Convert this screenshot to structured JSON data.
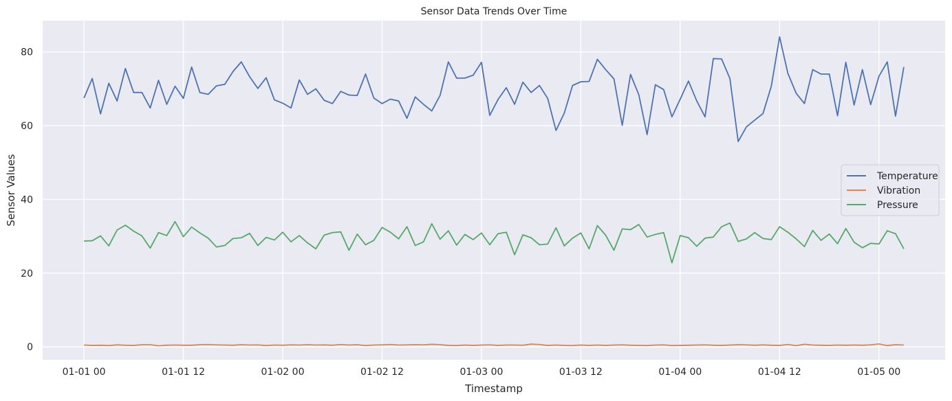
{
  "chart_data": {
    "type": "line",
    "title": "Sensor Data Trends Over Time",
    "xlabel": "Timestamp",
    "ylabel": "Sensor Values",
    "x_start": "2023-01-01 00:00",
    "x_step_hours": 1,
    "xlim_hours": [
      -4.99,
      103.99
    ],
    "ylim": [
      -3.5,
      88.5
    ],
    "x_ticks": [
      {
        "hours": 0,
        "label": "01-01 00"
      },
      {
        "hours": 12,
        "label": "01-01 12"
      },
      {
        "hours": 24,
        "label": "01-02 00"
      },
      {
        "hours": 36,
        "label": "01-02 12"
      },
      {
        "hours": 48,
        "label": "01-03 00"
      },
      {
        "hours": 60,
        "label": "01-03 12"
      },
      {
        "hours": 72,
        "label": "01-04 00"
      },
      {
        "hours": 84,
        "label": "01-04 12"
      },
      {
        "hours": 96,
        "label": "01-05 00"
      }
    ],
    "y_ticks": [
      0,
      20,
      40,
      60,
      80
    ],
    "grid": true,
    "legend_position": "center-right",
    "background": "#eaeaf2",
    "series": [
      {
        "name": "Temperature",
        "color": "#4c72b0",
        "values": [
          67.5,
          72.8,
          63.2,
          71.5,
          66.7,
          75.5,
          69.0,
          69.0,
          64.8,
          72.3,
          65.8,
          70.7,
          67.4,
          75.9,
          69.0,
          68.5,
          70.8,
          71.2,
          74.7,
          77.3,
          73.3,
          70.1,
          73.0,
          67.0,
          66.1,
          64.8,
          72.4,
          68.5,
          70.0,
          66.9,
          66.0,
          69.3,
          68.3,
          68.2,
          74.0,
          67.5,
          66.0,
          67.2,
          66.7,
          62.0,
          67.8,
          65.8,
          64.0,
          68.2,
          77.3,
          72.9,
          72.9,
          73.7,
          77.2,
          62.8,
          67.1,
          70.3,
          65.8,
          71.8,
          69.0,
          70.9,
          67.4,
          58.7,
          63.4,
          70.9,
          71.9,
          72.0,
          78.0,
          75.2,
          72.7,
          60.1,
          73.9,
          68.4,
          57.6,
          71.1,
          69.8,
          62.4,
          67.2,
          72.1,
          66.7,
          62.4,
          78.2,
          78.1,
          72.8,
          55.7,
          59.7,
          61.5,
          63.3,
          70.7,
          84.1,
          74.2,
          68.8,
          66.0,
          75.2,
          74.0,
          74.0,
          62.7,
          77.2,
          65.6,
          75.2,
          65.7,
          73.4,
          77.3,
          62.6,
          75.9
        ]
      },
      {
        "name": "Vibration",
        "color": "#dd8452",
        "values": [
          0.5,
          0.4,
          0.45,
          0.35,
          0.55,
          0.45,
          0.4,
          0.6,
          0.6,
          0.3,
          0.45,
          0.5,
          0.45,
          0.45,
          0.6,
          0.65,
          0.55,
          0.5,
          0.45,
          0.6,
          0.5,
          0.55,
          0.35,
          0.5,
          0.45,
          0.55,
          0.5,
          0.6,
          0.5,
          0.55,
          0.45,
          0.65,
          0.5,
          0.6,
          0.35,
          0.5,
          0.55,
          0.65,
          0.5,
          0.55,
          0.6,
          0.55,
          0.7,
          0.6,
          0.4,
          0.35,
          0.5,
          0.4,
          0.5,
          0.55,
          0.4,
          0.5,
          0.5,
          0.45,
          0.75,
          0.65,
          0.4,
          0.5,
          0.4,
          0.35,
          0.5,
          0.4,
          0.5,
          0.4,
          0.5,
          0.55,
          0.45,
          0.4,
          0.35,
          0.5,
          0.55,
          0.35,
          0.4,
          0.45,
          0.5,
          0.55,
          0.45,
          0.4,
          0.5,
          0.6,
          0.55,
          0.45,
          0.55,
          0.45,
          0.4,
          0.65,
          0.35,
          0.7,
          0.5,
          0.45,
          0.4,
          0.5,
          0.45,
          0.5,
          0.45,
          0.55,
          0.8,
          0.35,
          0.6,
          0.5
        ]
      },
      {
        "name": "Pressure",
        "color": "#55a868",
        "values": [
          28.7,
          28.8,
          30.1,
          27.4,
          31.7,
          33.0,
          31.4,
          30.1,
          26.8,
          31.0,
          30.2,
          34.0,
          29.9,
          32.5,
          30.9,
          29.5,
          27.1,
          27.5,
          29.4,
          29.6,
          30.8,
          27.5,
          29.7,
          29.0,
          31.1,
          28.5,
          30.2,
          28.2,
          26.6,
          30.3,
          31.0,
          31.2,
          26.2,
          30.6,
          27.7,
          28.9,
          32.4,
          31.1,
          29.3,
          32.6,
          27.5,
          28.5,
          33.4,
          29.2,
          31.5,
          27.6,
          30.5,
          29.1,
          30.9,
          27.7,
          30.7,
          31.1,
          25.0,
          30.4,
          29.6,
          27.7,
          27.9,
          32.3,
          27.4,
          29.5,
          30.9,
          26.6,
          32.9,
          30.3,
          26.2,
          32.0,
          31.8,
          33.2,
          29.8,
          30.5,
          31.0,
          22.8,
          30.2,
          29.6,
          27.3,
          29.5,
          29.8,
          32.6,
          33.6,
          28.6,
          29.3,
          31.0,
          29.4,
          29.1,
          32.6,
          31.1,
          29.3,
          27.2,
          31.6,
          28.9,
          30.6,
          28.0,
          32.1,
          28.4,
          26.9,
          28.1,
          27.9,
          31.5,
          30.7,
          26.6
        ]
      }
    ]
  }
}
